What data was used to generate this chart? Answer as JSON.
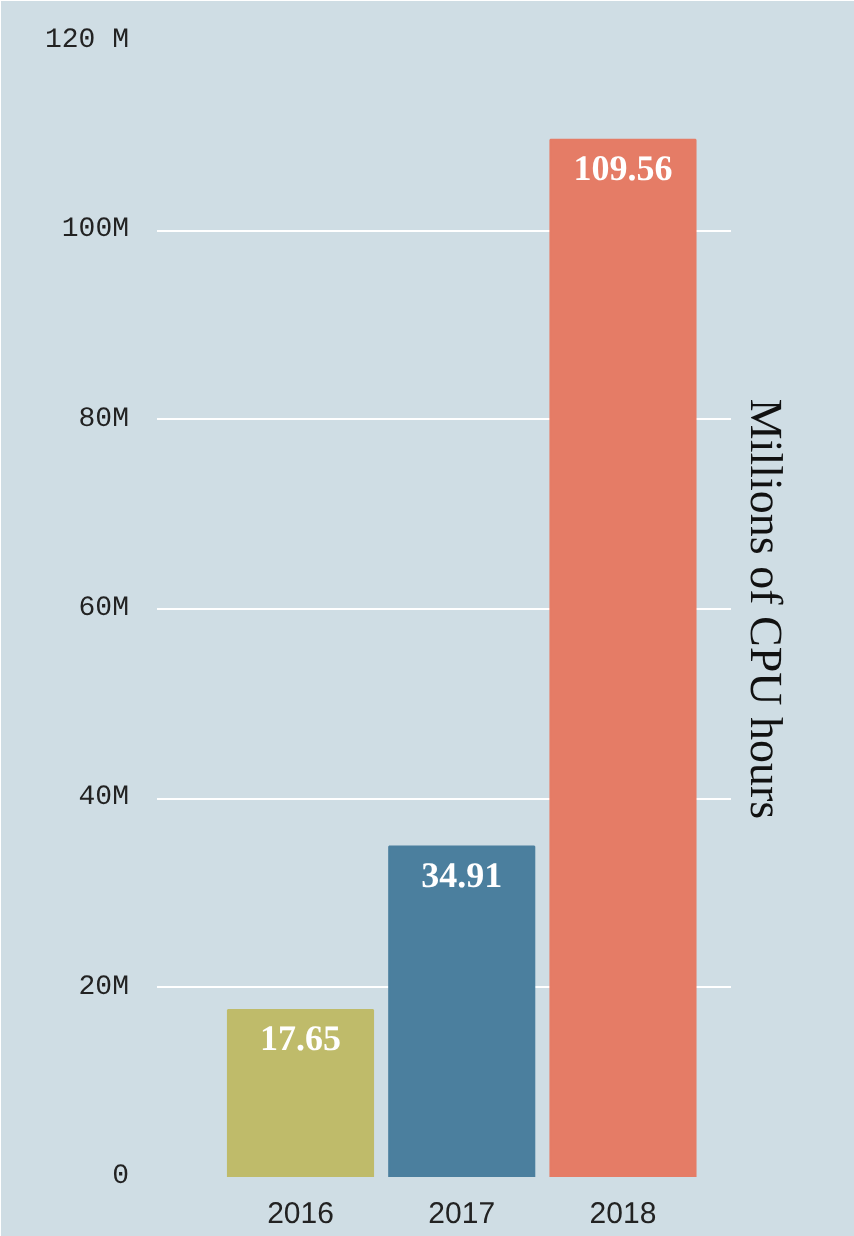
{
  "chart_data": {
    "type": "bar",
    "ylabel": "Millions of CPU hours",
    "categories": [
      "2016",
      "2017",
      "2018"
    ],
    "values": [
      17.65,
      34.91,
      109.56
    ],
    "colors": [
      "#bfbb6a",
      "#4b7f9e",
      "#e57c66"
    ],
    "ylim": [
      0,
      120
    ],
    "yticks": [
      {
        "value": 0,
        "label": "0"
      },
      {
        "value": 20,
        "label": "20M"
      },
      {
        "value": 40,
        "label": "40M"
      },
      {
        "value": 60,
        "label": "60M"
      },
      {
        "value": 80,
        "label": "80M"
      },
      {
        "value": 100,
        "label": "100M"
      },
      {
        "value": 120,
        "label": "120 M"
      }
    ],
    "grid": "y",
    "data_labels": true
  }
}
